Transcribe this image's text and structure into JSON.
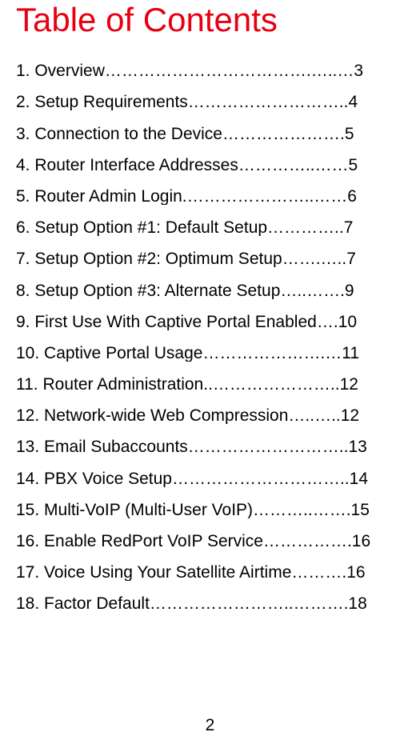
{
  "title": {
    "text": "Table of Contents",
    "color": "#e60012",
    "fontsize": 42,
    "fontweight": 200
  },
  "toc": {
    "fontsize": 21,
    "fontweight": 300,
    "color": "#000000",
    "entries": [
      "1.   Overview……………………………….…..…3",
      "2.   Setup Requirements………………………..4",
      "3.    Connection to the Device………………….5",
      "4.   Router Interface Addresses…………..……5",
      "5.   Router Admin Login.…………………..……6",
      "6.    Setup Option #1: Default Setup…………..7",
      "7.   Setup Option #2: Optimum Setup…….…..7",
      "8.   Setup Option #3: Alternate Setup…..…….9",
      "9.   First Use With Captive Portal Enabled….10",
      "10.  Captive Portal Usage………………….…11",
      "11.   Router Administration..…………………..12",
      "12.   Network-wide Web Compression…..…..12",
      "13. Email Subaccounts………………………..13",
      "14. PBX Voice Setup…………………………..14",
      "15. Multi-VoIP (Multi-User VoIP)………..…….15",
      "16. Enable RedPort VoIP Service…………….16",
      "17. Voice Using Your Satellite Airtime……….16",
      "18. Factor Default……………………..……….18"
    ]
  },
  "page_number": "2"
}
